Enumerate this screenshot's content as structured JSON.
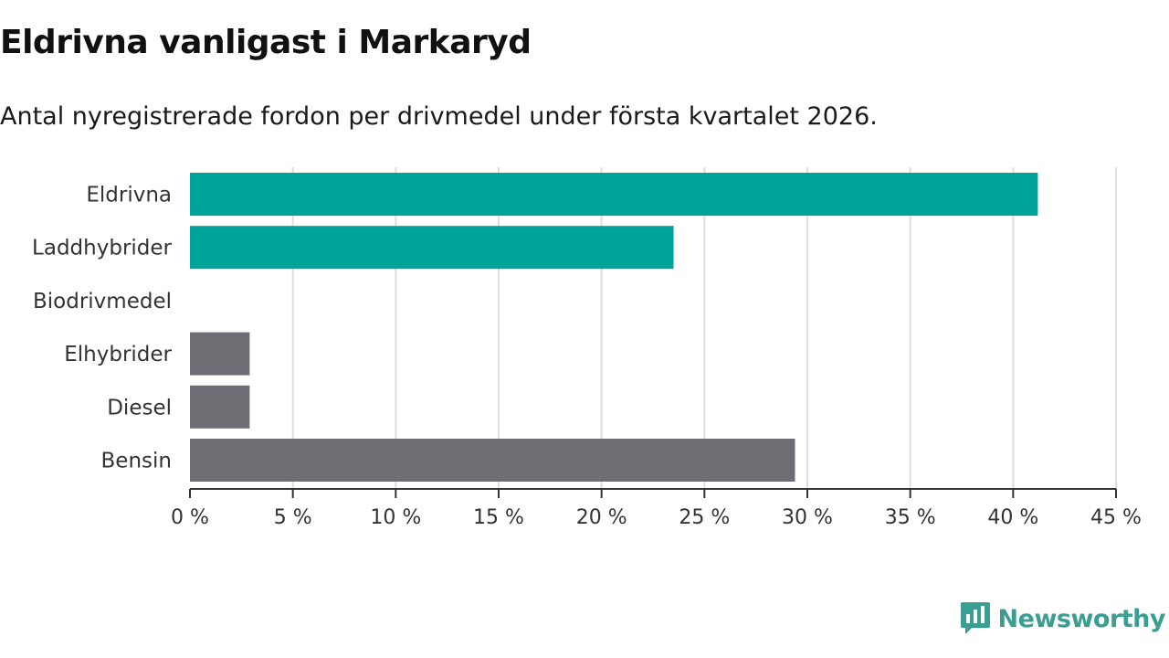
{
  "chart_data": {
    "type": "bar",
    "orientation": "horizontal",
    "title": "Eldrivna vanligast i Markaryd",
    "subtitle": "Antal nyregistrerade fordon per drivmedel under första kvartalet 2026.",
    "categories": [
      "Eldrivna",
      "Laddhybrider",
      "Biodrivmedel",
      "Elhybrider",
      "Diesel",
      "Bensin"
    ],
    "values": [
      41.2,
      23.5,
      0,
      2.9,
      2.9,
      29.4
    ],
    "bar_colors": [
      "#00a39a",
      "#00a39a",
      "#00a39a",
      "#6e6d73",
      "#6e6d73",
      "#6e6d73"
    ],
    "xlim": [
      0,
      45
    ],
    "xticks": [
      0,
      5,
      10,
      15,
      20,
      25,
      30,
      35,
      40,
      45
    ],
    "tick_labels": [
      "0 %",
      "5 %",
      "10 %",
      "15 %",
      "20 %",
      "25 %",
      "30 %",
      "35 %",
      "40 %",
      "45 %"
    ],
    "xlabel": "",
    "ylabel": "",
    "grid": true
  },
  "branding": {
    "logo_text": "Newsworthy",
    "logo_color": "#3a9f92"
  }
}
